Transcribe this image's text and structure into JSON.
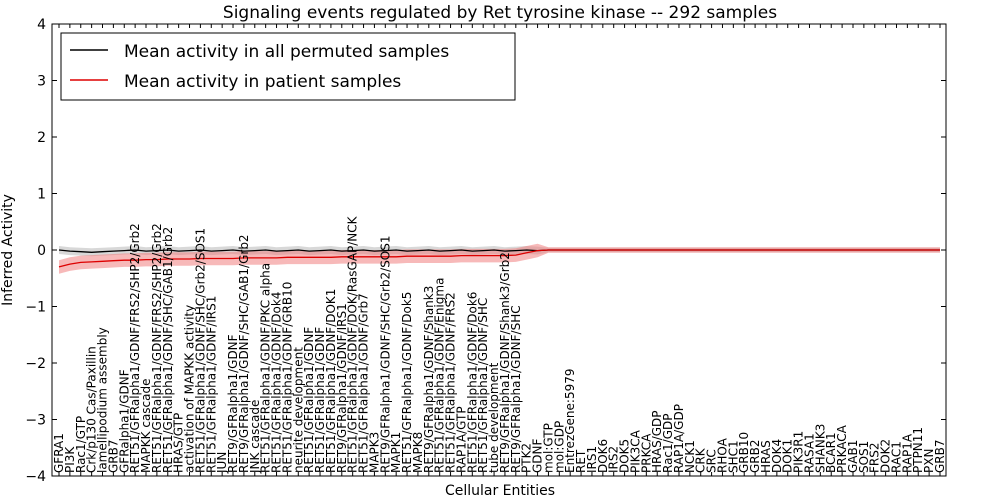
{
  "chart_data": {
    "type": "line",
    "title": "Signaling events regulated by Ret tyrosine kinase -- 292 samples",
    "xlabel": "Cellular Entities",
    "ylabel": "Inferred Activity",
    "ylim": [
      -4,
      4
    ],
    "yticks": [
      4,
      3,
      2,
      1,
      0,
      -1,
      -2,
      -3,
      -4
    ],
    "grid": false,
    "legend_position": "top-left",
    "colors": {
      "permuted": "#000000",
      "patient": "#dd0000",
      "permuted_band": "#c8c8c8",
      "patient_band": "#f08080"
    },
    "categories": [
      "GFRA1",
      "PI3K",
      "Rac1/GTP",
      "Crk/p130 Cas/Paxillin",
      "lamellipodium assembly",
      "GRB7",
      "GFRalpha1/GDNF",
      "RET51/GFRalpha1/GDNF/FRS2/SHP2/Grb2",
      "MAPKK cascade",
      "RET51/GFRalpha1/GDNF/FRS2/SHP2/Grb2",
      "RET51/GFRalpha1/GDNF/SHC/GAB1/Grb2",
      "HRAS/GTP",
      "activation of MAPKK activity",
      "RET51/GFRalpha1/GDNF/SHC/Grb2/SOS1",
      "RET51/GFRalpha1/GDNF/IRS1",
      "JUN",
      "RET9/GFRalpha1/GDNF",
      "RET9/GFRalpha1/GDNF/SHC/GAB1/Grb2",
      "JNK cascade",
      "RET51/GFRalpha1/GDNF/PKC alpha",
      "RET51/GFRalpha1/GDNF/Dok4",
      "RET51/GFRalpha1/GDNF/GRB10",
      "neurite development",
      "RET51/GFRalpha1/GDNF",
      "RET51/GFRalpha1/GDNF",
      "RET51/GFRalpha1/GDNF/DOK1",
      "RET9/GFRalpha1/GDNF/IRS1",
      "RET51/GFRalpha1/GDNF/DOK/RasGAP/NCK",
      "RET51/GFRalpha1/GDNF/Grb7",
      "MAPK3",
      "RET9/GFRalpha1/GDNF/SHC/Grb2/SOS1",
      "MAPK1",
      "RET51/GFRalpha1/GDNF/Dok5",
      "MAPK8",
      "RET9/GFRalpha1/GDNF/Shank3",
      "RET51/GFRalpha1/GDNF/Enigma",
      "RET51/GFRalpha1/GDNF/FRS2",
      "RAP1A/GTP",
      "RET51/GFRalpha1/GDNF/Dok6",
      "RET51/GFRalpha1/GDNF/SHC",
      "tube development",
      "RET9/GFRalpha1/GDNF/Shank3/Grb2",
      "RET9/GFRalpha1/GDNF/SHC",
      "PTK2",
      "GDNF",
      "mol:GTP",
      "mol:GDP",
      "EntrezGene:5979",
      "RET",
      "IRS1",
      "DOK6",
      "IRS2",
      "DOK5",
      "PIK3CA",
      "PRKCA",
      "HRAS/GDP",
      "Rac1/GDP",
      "RAP1A/GDP",
      "NCK1",
      "CRK",
      "SRC",
      "RHOA",
      "SHC1",
      "GRB10",
      "GRB2",
      "HRAS",
      "DOK4",
      "DOK1",
      "PIK3R1",
      "RASA1",
      "SHANK3",
      "BCAR1",
      "PRKACA",
      "GAB1",
      "SOS1",
      "FRS2",
      "DOK2",
      "RAC1",
      "RAP1A",
      "PTPN11",
      "PXN",
      "GRB7"
    ],
    "series": [
      {
        "name": "Mean activity in all permuted samples",
        "color": "#000000",
        "values": [
          0.0,
          -0.02,
          -0.03,
          -0.04,
          -0.03,
          -0.02,
          -0.01,
          0.0,
          -0.02,
          -0.01,
          0.0,
          -0.02,
          -0.01,
          0.0,
          -0.02,
          -0.01,
          0.0,
          -0.02,
          -0.01,
          0.0,
          -0.02,
          -0.01,
          0.0,
          -0.02,
          -0.01,
          0.0,
          -0.02,
          -0.01,
          0.0,
          -0.02,
          -0.01,
          0.0,
          -0.02,
          -0.01,
          0.0,
          -0.02,
          -0.01,
          0.0,
          -0.02,
          -0.01,
          0.0,
          -0.02,
          -0.01,
          0.0,
          -0.01,
          0,
          0,
          0,
          0,
          0,
          0,
          0,
          0,
          0,
          0,
          0,
          0,
          0,
          0,
          0,
          0,
          0,
          0,
          0,
          0,
          0,
          0,
          0,
          0,
          0,
          0,
          0,
          0,
          0,
          0,
          0,
          0,
          0,
          0,
          0,
          0,
          0
        ]
      },
      {
        "name": "Mean activity in patient samples",
        "color": "#dd0000",
        "values": [
          -0.3,
          -0.25,
          -0.22,
          -0.21,
          -0.2,
          -0.19,
          -0.18,
          -0.18,
          -0.17,
          -0.17,
          -0.16,
          -0.16,
          -0.16,
          -0.15,
          -0.15,
          -0.15,
          -0.15,
          -0.14,
          -0.14,
          -0.14,
          -0.14,
          -0.13,
          -0.13,
          -0.13,
          -0.13,
          -0.13,
          -0.12,
          -0.12,
          -0.12,
          -0.12,
          -0.12,
          -0.12,
          -0.11,
          -0.11,
          -0.11,
          -0.11,
          -0.11,
          -0.1,
          -0.1,
          -0.1,
          -0.1,
          -0.1,
          -0.09,
          -0.05,
          -0.01,
          0,
          0,
          0,
          0,
          0,
          0,
          0,
          0,
          0,
          0,
          0,
          0,
          0,
          0,
          0,
          0,
          0,
          0,
          0,
          0,
          0,
          0,
          0,
          0,
          0,
          0,
          0,
          0,
          0,
          0,
          0,
          0,
          0,
          0,
          0,
          0,
          0
        ]
      }
    ]
  }
}
